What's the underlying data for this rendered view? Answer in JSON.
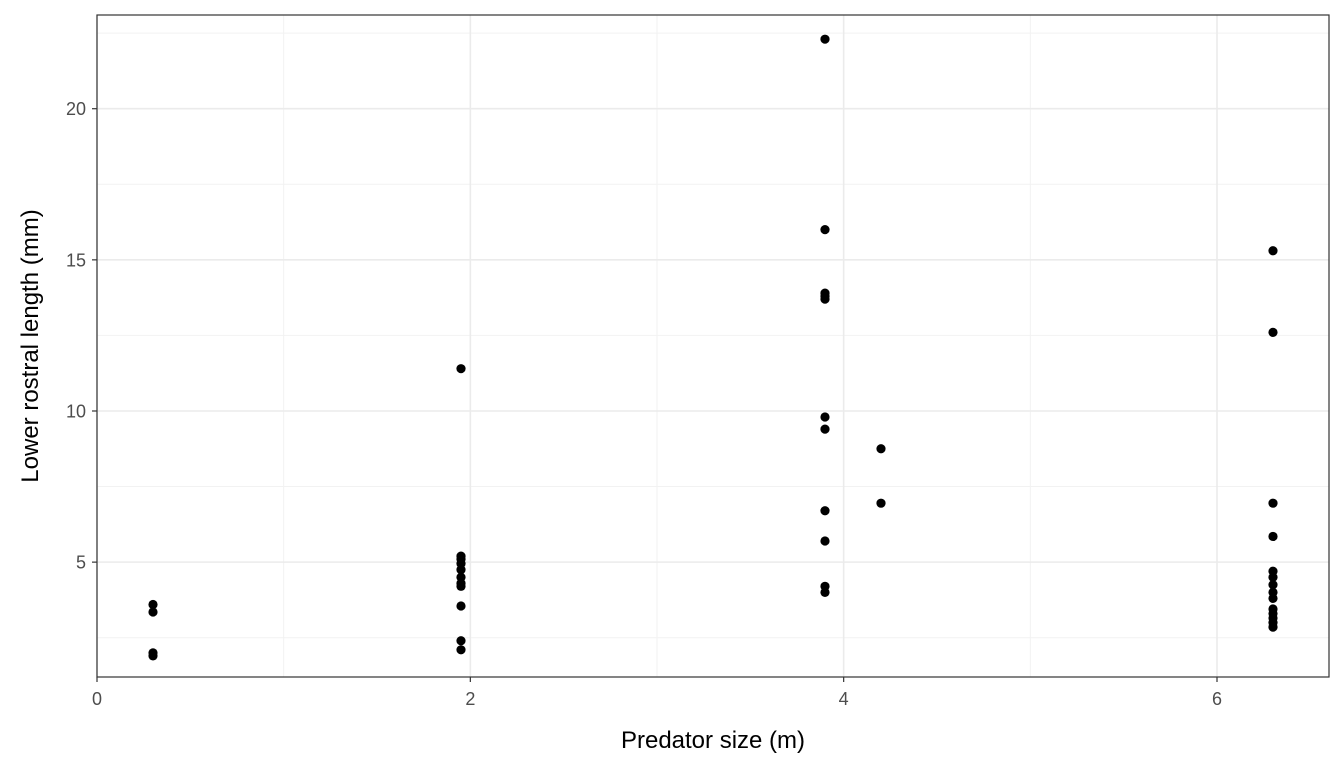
{
  "chart_data": {
    "type": "scatter",
    "title": "",
    "xlabel": "Predator size (m)",
    "ylabel": "Lower rostral length (mm)",
    "xlim": [
      0,
      6.6
    ],
    "ylim": [
      1.2,
      23.1
    ],
    "x_ticks": [
      0,
      2,
      4,
      6
    ],
    "y_ticks": [
      5,
      10,
      15,
      20
    ],
    "x_tick_labels": [
      "0",
      "2",
      "4",
      "6"
    ],
    "y_tick_labels": [
      "5",
      "10",
      "15",
      "20"
    ],
    "grid": true,
    "legend": "none",
    "point_color": "#000000",
    "series": [
      {
        "points": [
          {
            "x": 0.3,
            "y": 3.6
          },
          {
            "x": 0.3,
            "y": 3.35
          },
          {
            "x": 0.3,
            "y": 2.0
          },
          {
            "x": 0.3,
            "y": 1.9
          },
          {
            "x": 1.95,
            "y": 11.4
          },
          {
            "x": 1.95,
            "y": 5.2
          },
          {
            "x": 1.95,
            "y": 5.1
          },
          {
            "x": 1.95,
            "y": 4.95
          },
          {
            "x": 1.95,
            "y": 4.75
          },
          {
            "x": 1.95,
            "y": 4.5
          },
          {
            "x": 1.95,
            "y": 4.3
          },
          {
            "x": 1.95,
            "y": 4.2
          },
          {
            "x": 1.95,
            "y": 3.55
          },
          {
            "x": 1.95,
            "y": 2.4
          },
          {
            "x": 1.95,
            "y": 2.1
          },
          {
            "x": 3.9,
            "y": 22.3
          },
          {
            "x": 3.9,
            "y": 16.0
          },
          {
            "x": 3.9,
            "y": 13.9
          },
          {
            "x": 3.9,
            "y": 13.8
          },
          {
            "x": 3.9,
            "y": 13.7
          },
          {
            "x": 3.9,
            "y": 9.8
          },
          {
            "x": 3.9,
            "y": 9.4
          },
          {
            "x": 3.9,
            "y": 6.7
          },
          {
            "x": 3.9,
            "y": 5.7
          },
          {
            "x": 3.9,
            "y": 4.2
          },
          {
            "x": 3.9,
            "y": 4.0
          },
          {
            "x": 4.2,
            "y": 8.75
          },
          {
            "x": 4.2,
            "y": 6.95
          },
          {
            "x": 6.3,
            "y": 15.3
          },
          {
            "x": 6.3,
            "y": 12.6
          },
          {
            "x": 6.3,
            "y": 6.95
          },
          {
            "x": 6.3,
            "y": 5.85
          },
          {
            "x": 6.3,
            "y": 4.7
          },
          {
            "x": 6.3,
            "y": 4.5
          },
          {
            "x": 6.3,
            "y": 4.25
          },
          {
            "x": 6.3,
            "y": 4.0
          },
          {
            "x": 6.3,
            "y": 3.8
          },
          {
            "x": 6.3,
            "y": 3.45
          },
          {
            "x": 6.3,
            "y": 3.3
          },
          {
            "x": 6.3,
            "y": 3.15
          },
          {
            "x": 6.3,
            "y": 3.0
          },
          {
            "x": 6.3,
            "y": 2.85
          }
        ]
      }
    ]
  }
}
